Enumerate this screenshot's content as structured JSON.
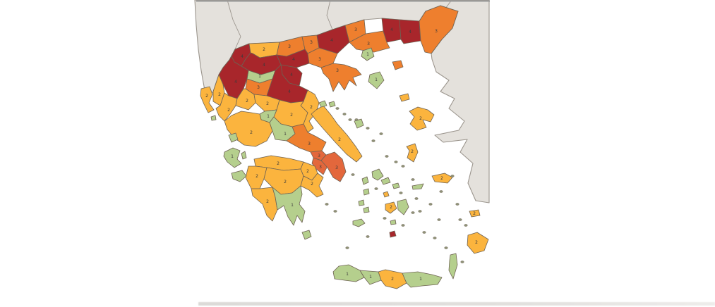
{
  "map": {
    "colors": {
      "sea": "#ffffff",
      "neighbor_land": "#e4e1dc",
      "neighbor_border": "#9b958d",
      "region_border": "#6e6253",
      "top_edge_line": "#9a9a9a",
      "number_text": "#3b3b3b",
      "attica_orange": "#e3673c"
    },
    "level_colors": {
      "1": "#b5cf8d",
      "2": "#fbb43e",
      "3": "#ee7f2e",
      "4": "#a8262b"
    },
    "regions": [
      {
        "id": "kastoria",
        "level": 4,
        "show_num": true
      },
      {
        "id": "florina",
        "level": 2,
        "show_num": true
      },
      {
        "id": "pella",
        "level": 3,
        "show_num": true
      },
      {
        "id": "kilkis",
        "level": 3,
        "show_num": true
      },
      {
        "id": "serres",
        "level": 4,
        "show_num": true
      },
      {
        "id": "drama",
        "level": 3,
        "show_num": true
      },
      {
        "id": "kavala",
        "level": 3,
        "show_num": true
      },
      {
        "id": "xanthi",
        "level": 4,
        "show_num": true
      },
      {
        "id": "rodopi",
        "level": 4,
        "show_num": true
      },
      {
        "id": "evros",
        "level": 3,
        "show_num": true
      },
      {
        "id": "thasos",
        "level": 1,
        "show_num": true
      },
      {
        "id": "samothraki",
        "level": 3,
        "show_num": false
      },
      {
        "id": "imathia",
        "level": 4,
        "show_num": true
      },
      {
        "id": "thessaloniki",
        "level": 3,
        "show_num": true
      },
      {
        "id": "chalkidiki",
        "level": 3,
        "show_num": true
      },
      {
        "id": "athos",
        "level": 1,
        "show_num": true
      },
      {
        "id": "pieria",
        "level": 4,
        "show_num": true
      },
      {
        "id": "kozani",
        "level": 4,
        "show_num": true
      },
      {
        "id": "grevena",
        "level": 1,
        "show_num": true
      },
      {
        "id": "ioannina",
        "level": 4,
        "show_num": true
      },
      {
        "id": "thesprotia",
        "level": 2,
        "show_num": true
      },
      {
        "id": "preveza",
        "level": 2,
        "show_num": true
      },
      {
        "id": "arta",
        "level": 2,
        "show_num": true
      },
      {
        "id": "trikala",
        "level": 3,
        "show_num": true
      },
      {
        "id": "larissa",
        "level": 4,
        "show_num": true
      },
      {
        "id": "karditsa",
        "level": 2,
        "show_num": true
      },
      {
        "id": "magnesia",
        "level": 2,
        "show_num": true
      },
      {
        "id": "phthiotis",
        "level": 2,
        "show_num": true
      },
      {
        "id": "evrytania",
        "level": 1,
        "show_num": true
      },
      {
        "id": "aetolia-acarnania",
        "level": 2,
        "show_num": true
      },
      {
        "id": "phocis",
        "level": 1,
        "show_num": true
      },
      {
        "id": "boeotia",
        "level": 3,
        "show_num": true
      },
      {
        "id": "euboea",
        "level": 2,
        "show_num": true
      },
      {
        "id": "attica-west",
        "level": 3,
        "show_num": true,
        "fill": "#e3673c"
      },
      {
        "id": "attica-athens",
        "level": 3,
        "show_num": true,
        "fill": "#e3673c"
      },
      {
        "id": "attica-east",
        "level": 3,
        "show_num": true,
        "fill": "#e3673c"
      },
      {
        "id": "achaea",
        "level": 2,
        "show_num": true
      },
      {
        "id": "corinthia",
        "level": 2,
        "show_num": true
      },
      {
        "id": "elis",
        "level": 2,
        "show_num": true
      },
      {
        "id": "arcadia",
        "level": 2,
        "show_num": true
      },
      {
        "id": "argolis",
        "level": 2,
        "show_num": true
      },
      {
        "id": "messenia",
        "level": 2,
        "show_num": true
      },
      {
        "id": "laconia",
        "level": 1,
        "show_num": true
      },
      {
        "id": "corfu",
        "level": 2,
        "show_num": true
      },
      {
        "id": "paxoi",
        "level": 1,
        "show_num": false
      },
      {
        "id": "lefkada",
        "level": 1,
        "show_num": false
      },
      {
        "id": "kefalonia",
        "level": 1,
        "show_num": true
      },
      {
        "id": "ithaki",
        "level": 1,
        "show_num": false
      },
      {
        "id": "zakynthos",
        "level": 1,
        "show_num": false
      },
      {
        "id": "kythira",
        "level": 1,
        "show_num": false
      },
      {
        "id": "skiathos",
        "level": 1,
        "show_num": false
      },
      {
        "id": "skopelos",
        "level": 1,
        "show_num": false
      },
      {
        "id": "skyros",
        "level": 1,
        "show_num": false
      },
      {
        "id": "limnos",
        "level": 2,
        "show_num": false
      },
      {
        "id": "lesvos",
        "level": 2,
        "show_num": true
      },
      {
        "id": "chios",
        "level": 2,
        "show_num": true
      },
      {
        "id": "samos",
        "level": 2,
        "show_num": true
      },
      {
        "id": "ikaria",
        "level": 1,
        "show_num": false
      },
      {
        "id": "andros",
        "level": 1,
        "show_num": false
      },
      {
        "id": "tinos",
        "level": 1,
        "show_num": false
      },
      {
        "id": "mykonos",
        "level": 1,
        "show_num": false
      },
      {
        "id": "syros",
        "level": 2,
        "show_num": false
      },
      {
        "id": "kea",
        "level": 1,
        "show_num": false
      },
      {
        "id": "kythnos",
        "level": 1,
        "show_num": false
      },
      {
        "id": "serifos",
        "level": 1,
        "show_num": false
      },
      {
        "id": "sifnos",
        "level": 1,
        "show_num": false
      },
      {
        "id": "milos",
        "level": 1,
        "show_num": false
      },
      {
        "id": "paros",
        "level": 2,
        "show_num": true
      },
      {
        "id": "naxos",
        "level": 1,
        "show_num": false
      },
      {
        "id": "ios",
        "level": 1,
        "show_num": false
      },
      {
        "id": "santorini",
        "level": 4,
        "show_num": false
      },
      {
        "id": "kos",
        "level": 2,
        "show_num": true
      },
      {
        "id": "karpathos",
        "level": 1,
        "show_num": false
      },
      {
        "id": "rhodes",
        "level": 2,
        "show_num": true
      },
      {
        "id": "chania",
        "level": 1,
        "show_num": true
      },
      {
        "id": "rethymno",
        "level": 1,
        "show_num": true
      },
      {
        "id": "heraklion",
        "level": 2,
        "show_num": true
      },
      {
        "id": "lasithi",
        "level": 1,
        "show_num": true
      }
    ]
  }
}
